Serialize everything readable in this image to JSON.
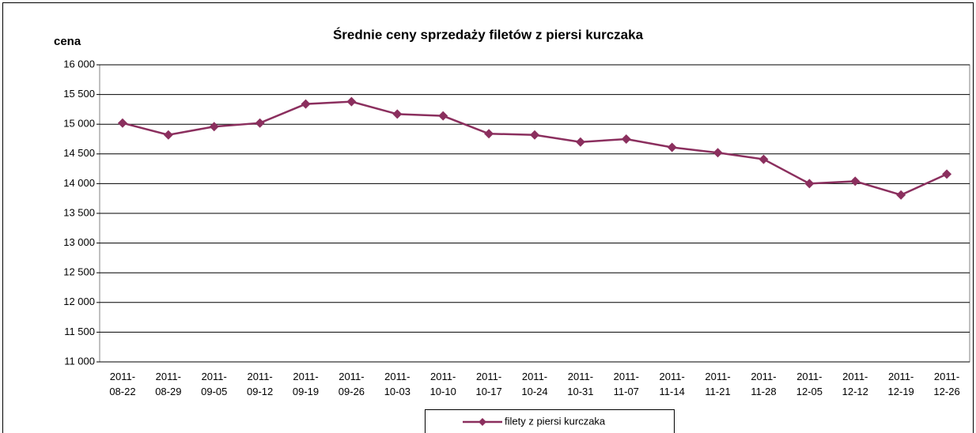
{
  "chart_data": {
    "type": "line",
    "title": "Średnie ceny sprzedaży filetów z piersi kurczaka",
    "y_label": "cena",
    "categories": [
      "2011-08-22",
      "2011-08-29",
      "2011-09-05",
      "2011-09-12",
      "2011-09-19",
      "2011-09-26",
      "2011-10-03",
      "2011-10-10",
      "2011-10-17",
      "2011-10-24",
      "2011-10-31",
      "2011-11-07",
      "2011-11-14",
      "2011-11-21",
      "2011-11-28",
      "2011-12-05",
      "2011-12-12",
      "2011-12-19",
      "2011-12-26"
    ],
    "series": [
      {
        "name": "filety z piersi kurczaka",
        "color": "#8b2f5e",
        "values": [
          15020,
          14820,
          14960,
          15020,
          15340,
          15380,
          15170,
          15140,
          14840,
          14820,
          14700,
          14750,
          14610,
          14520,
          14410,
          14000,
          14040,
          13810,
          14160
        ]
      }
    ],
    "ylim": [
      11000,
      16000
    ],
    "yticks": [
      {
        "value": 11000,
        "label": "11 000"
      },
      {
        "value": 11500,
        "label": "11 500"
      },
      {
        "value": 12000,
        "label": "12 000"
      },
      {
        "value": 12500,
        "label": "12 500"
      },
      {
        "value": 13000,
        "label": "13 000"
      },
      {
        "value": 13500,
        "label": "13 500"
      },
      {
        "value": 14000,
        "label": "14 000"
      },
      {
        "value": 14500,
        "label": "14 500"
      },
      {
        "value": 15000,
        "label": "15 000"
      },
      {
        "value": 15500,
        "label": "15 500"
      },
      {
        "value": 16000,
        "label": "16 000"
      }
    ],
    "grid": true,
    "legend": "bottom"
  }
}
